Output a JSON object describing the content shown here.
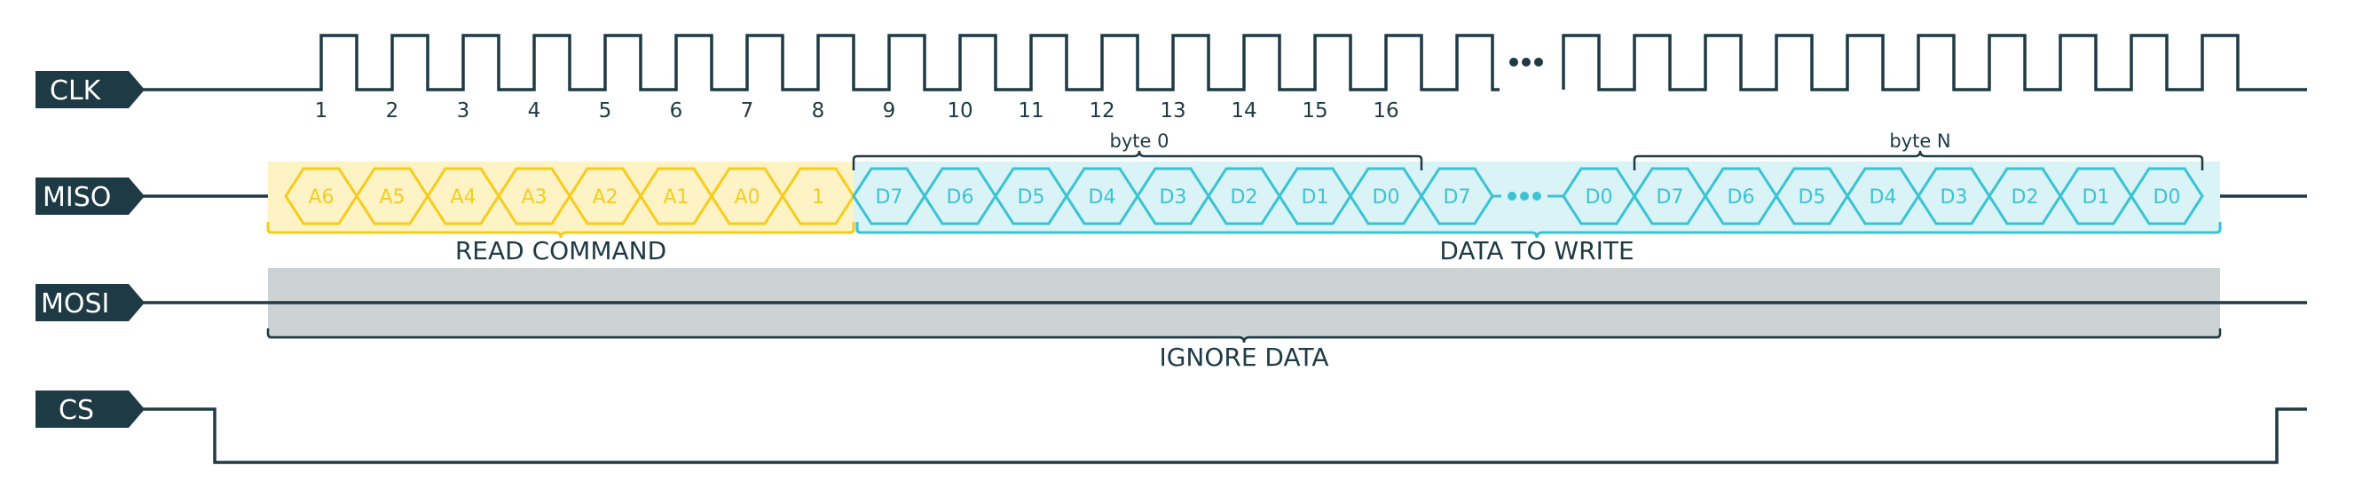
{
  "signals": {
    "clk": "CLK",
    "miso": "MISO",
    "mosi": "MOSI",
    "cs": "CS"
  },
  "clock_numbers": [
    "1",
    "2",
    "3",
    "4",
    "5",
    "6",
    "7",
    "8",
    "9",
    "10",
    "11",
    "12",
    "13",
    "14",
    "15",
    "16"
  ],
  "read_command_cells": [
    "A6",
    "A5",
    "A4",
    "A3",
    "A2",
    "A1",
    "A0",
    "1"
  ],
  "byte0_cells": [
    "D7",
    "D6",
    "D5",
    "D4",
    "D3",
    "D2",
    "D1",
    "D0"
  ],
  "mid_cells": [
    "D7",
    "D0"
  ],
  "byteN_cells": [
    "D7",
    "D6",
    "D5",
    "D4",
    "D3",
    "D2",
    "D1",
    "D0"
  ],
  "labels": {
    "byte0": "byte 0",
    "byteN": "byte N",
    "read_command": "READ COMMAND",
    "data_to_write": "DATA TO WRITE",
    "ignore_data": "IGNORE DATA"
  },
  "colors": {
    "navy": "#1e3a45",
    "yellow": "#f5cd1f",
    "yellow_bg": "#fdf3c4",
    "cyan": "#3cc3d3",
    "cyan_bg": "#d9f3f6",
    "gray_bg": "#cdd2d5"
  }
}
